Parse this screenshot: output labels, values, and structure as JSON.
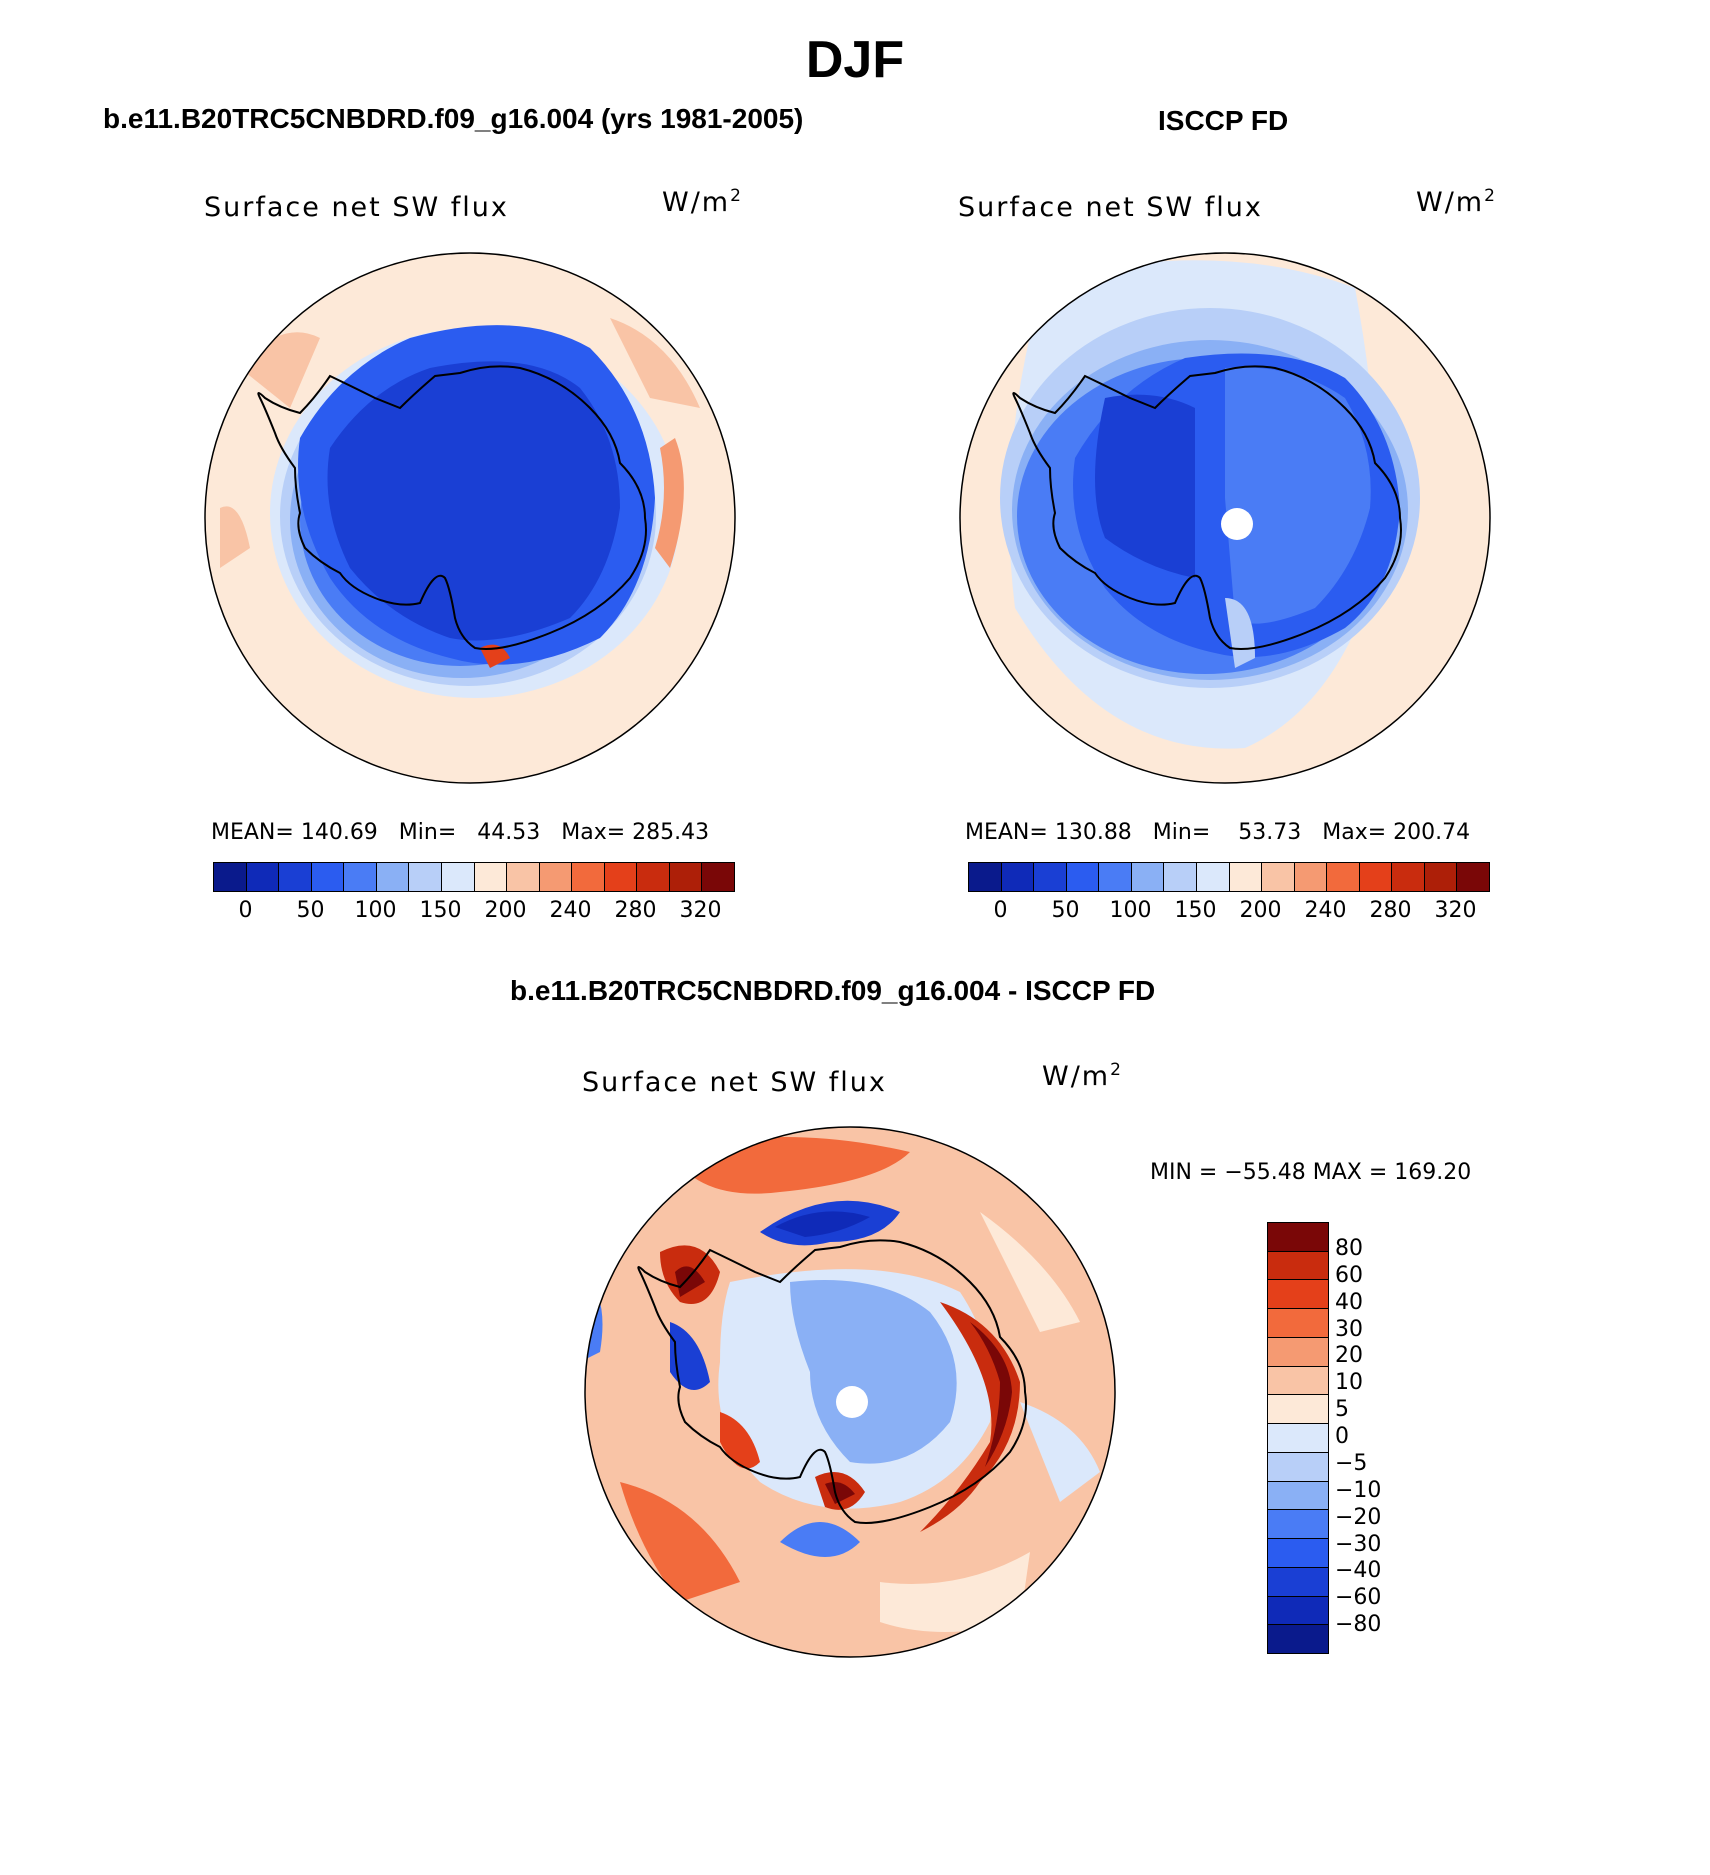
{
  "figure": {
    "title": "DJF"
  },
  "panels": {
    "model": {
      "case_title": "b.e11.B20TRC5CNBDRD.f09_g16.004 (yrs 1981-2005)",
      "variable": "Surface net SW flux",
      "units_base": "W/m",
      "units_exp": "2",
      "stats": {
        "mean_label": "MEAN=",
        "mean": "140.69",
        "min_label": "Min=",
        "min": "44.53",
        "max_label": "Max=",
        "max": "285.43"
      }
    },
    "obs": {
      "case_title": "ISCCP FD",
      "variable": "Surface net SW flux",
      "units_base": "W/m",
      "units_exp": "2",
      "stats": {
        "mean_label": "MEAN=",
        "mean": "130.88",
        "min_label": "Min=",
        "min": "53.73",
        "max_label": "Max=",
        "max": "200.74"
      }
    },
    "diff": {
      "case_title": "b.e11.B20TRC5CNBDRD.f09_g16.004 - ISCCP FD",
      "variable": "Surface net SW flux",
      "units_base": "W/m",
      "units_exp": "2",
      "minmax": "MIN = −55.48 MAX = 169.20"
    }
  },
  "colorbars": {
    "absolute": {
      "colors": [
        "#0a1a8c",
        "#0f2ab8",
        "#1a3fd4",
        "#2b5cf0",
        "#4a7cf5",
        "#8ab0f5",
        "#b8cff8",
        "#dbe8fb",
        "#fde9d8",
        "#f9c4a6",
        "#f59a72",
        "#f26a3c",
        "#e4401a",
        "#c92c0e",
        "#ad1f08",
        "#7a0707"
      ],
      "tick_labels": [
        "0",
        "50",
        "100",
        "150",
        "200",
        "240",
        "280",
        "320"
      ]
    },
    "difference": {
      "colors": [
        "#0a1a8c",
        "#0f2ab8",
        "#1a3fd4",
        "#2b5cf0",
        "#4a7cf5",
        "#8ab0f5",
        "#b8cff8",
        "#dbe8fb",
        "#fde9d8",
        "#f9c4a6",
        "#f59a72",
        "#f26a3c",
        "#e4401a",
        "#c92c0e",
        "#7a0707"
      ],
      "tick_labels": [
        "80",
        "60",
        "40",
        "30",
        "20",
        "10",
        "5",
        "0",
        "−5",
        "−10",
        "−20",
        "−30",
        "−40",
        "−60",
        "−80"
      ]
    }
  }
}
